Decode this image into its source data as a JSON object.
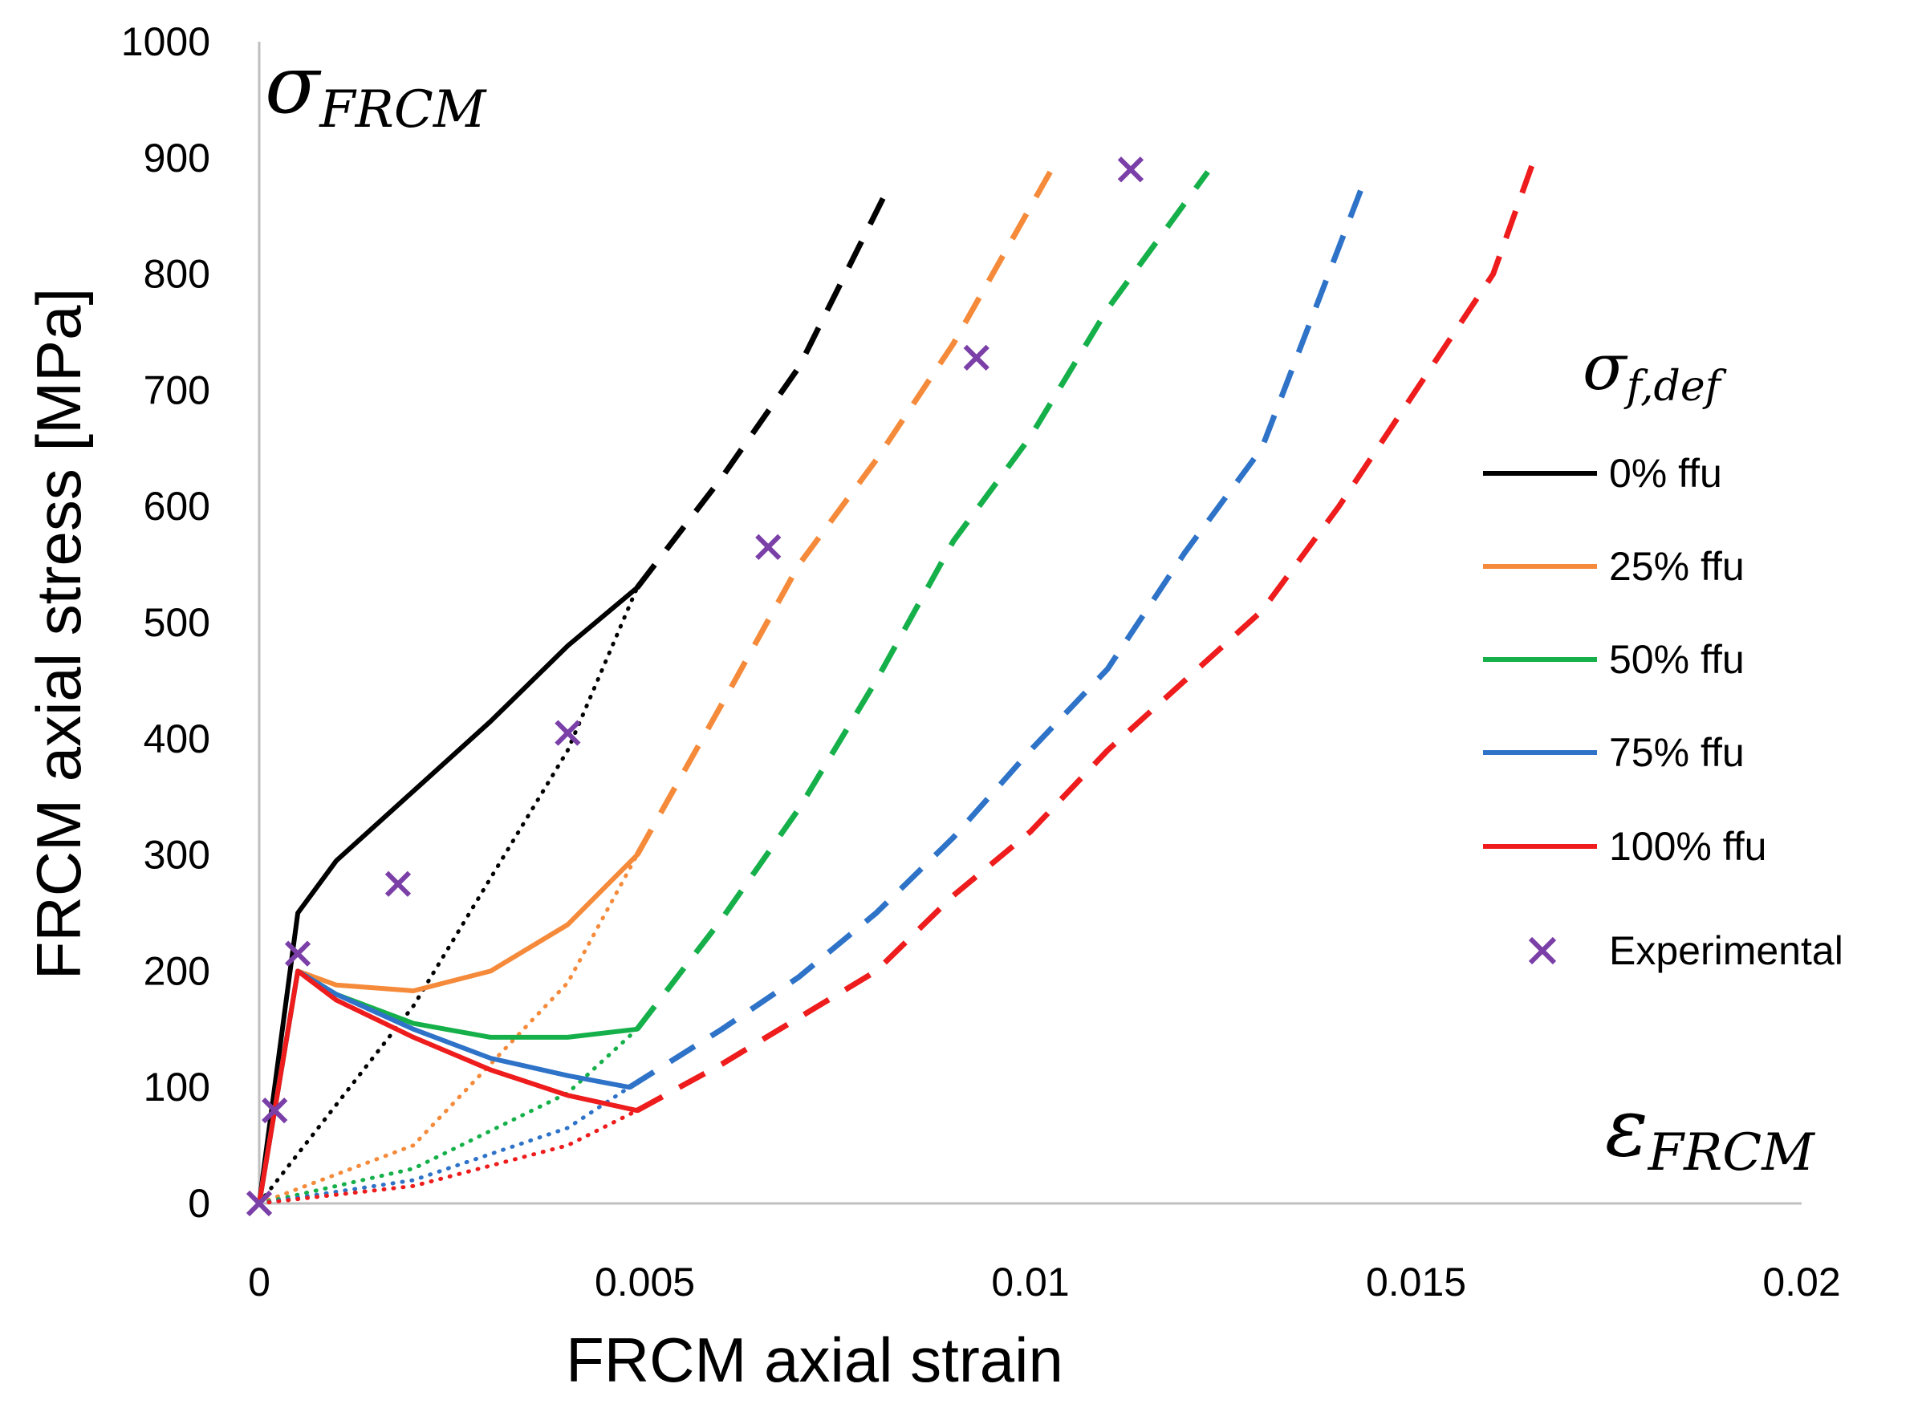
{
  "chart_data": {
    "type": "line",
    "xlabel": "FRCM axial strain",
    "ylabel": "FRCM axial stress [MPa]",
    "xlim": [
      0,
      0.02
    ],
    "ylim": [
      0,
      1000
    ],
    "x_ticks": [
      "0",
      "0.005",
      "0.01",
      "0.015",
      "0.02"
    ],
    "y_ticks": [
      "0",
      "100",
      "200",
      "300",
      "400",
      "500",
      "600",
      "700",
      "800",
      "900",
      "1000"
    ],
    "y_symbol": {
      "main": "σ",
      "sub": "FRCM"
    },
    "x_symbol": {
      "main": "ε",
      "sub": "FRCM"
    },
    "legend_title": {
      "main": "σ",
      "sub": "f,def"
    },
    "legend_position": "right",
    "series": [
      {
        "name": "0% ffu",
        "color": "#000000",
        "solid": [
          [
            0,
            0
          ],
          [
            0.0005,
            250
          ],
          [
            0.001,
            295
          ],
          [
            0.002,
            355
          ],
          [
            0.003,
            415
          ],
          [
            0.004,
            480
          ],
          [
            0.0049,
            530
          ]
        ],
        "dashed": [
          [
            0.0049,
            530
          ],
          [
            0.006,
            625
          ],
          [
            0.007,
            720
          ],
          [
            0.0082,
            880
          ]
        ],
        "dotted": [
          [
            0,
            0
          ],
          [
            0.002,
            170
          ],
          [
            0.004,
            390
          ],
          [
            0.0049,
            530
          ]
        ]
      },
      {
        "name": "25% ffu",
        "color": "#f58a3a",
        "solid": [
          [
            0,
            0
          ],
          [
            0.0005,
            200
          ],
          [
            0.001,
            188
          ],
          [
            0.002,
            183
          ],
          [
            0.003,
            200
          ],
          [
            0.004,
            240
          ],
          [
            0.0049,
            300
          ]
        ],
        "dashed": [
          [
            0.0049,
            300
          ],
          [
            0.006,
            430
          ],
          [
            0.007,
            550
          ],
          [
            0.008,
            640
          ],
          [
            0.009,
            740
          ],
          [
            0.0103,
            893
          ]
        ],
        "dotted": [
          [
            0,
            0
          ],
          [
            0.002,
            50
          ],
          [
            0.004,
            190
          ],
          [
            0.0049,
            300
          ]
        ]
      },
      {
        "name": "50% ffu",
        "color": "#15b04a",
        "solid": [
          [
            0,
            0
          ],
          [
            0.0005,
            200
          ],
          [
            0.001,
            180
          ],
          [
            0.002,
            155
          ],
          [
            0.003,
            143
          ],
          [
            0.004,
            143
          ],
          [
            0.0049,
            150
          ]
        ],
        "dashed": [
          [
            0.0049,
            150
          ],
          [
            0.006,
            245
          ],
          [
            0.007,
            340
          ],
          [
            0.008,
            450
          ],
          [
            0.009,
            570
          ],
          [
            0.01,
            660
          ],
          [
            0.011,
            770
          ],
          [
            0.0123,
            888
          ]
        ],
        "dotted": [
          [
            0,
            0
          ],
          [
            0.002,
            30
          ],
          [
            0.004,
            95
          ],
          [
            0.0049,
            150
          ]
        ]
      },
      {
        "name": "75% ffu",
        "color": "#2e73c8",
        "solid": [
          [
            0,
            0
          ],
          [
            0.0005,
            200
          ],
          [
            0.001,
            180
          ],
          [
            0.002,
            150
          ],
          [
            0.003,
            125
          ],
          [
            0.004,
            110
          ],
          [
            0.0048,
            100
          ]
        ],
        "dashed": [
          [
            0.0048,
            100
          ],
          [
            0.006,
            150
          ],
          [
            0.007,
            195
          ],
          [
            0.008,
            250
          ],
          [
            0.009,
            315
          ],
          [
            0.01,
            390
          ],
          [
            0.011,
            460
          ],
          [
            0.012,
            560
          ],
          [
            0.013,
            650
          ],
          [
            0.0143,
            875
          ]
        ],
        "dotted": [
          [
            0,
            0
          ],
          [
            0.002,
            20
          ],
          [
            0.004,
            65
          ],
          [
            0.0048,
            100
          ]
        ]
      },
      {
        "name": "100% ffu",
        "color": "#ee1c1c",
        "solid": [
          [
            0,
            0
          ],
          [
            0.0005,
            200
          ],
          [
            0.001,
            175
          ],
          [
            0.002,
            143
          ],
          [
            0.003,
            115
          ],
          [
            0.004,
            93
          ],
          [
            0.0049,
            80
          ]
        ],
        "dashed": [
          [
            0.0049,
            80
          ],
          [
            0.006,
            120
          ],
          [
            0.007,
            160
          ],
          [
            0.008,
            200
          ],
          [
            0.009,
            265
          ],
          [
            0.01,
            320
          ],
          [
            0.011,
            390
          ],
          [
            0.012,
            450
          ],
          [
            0.013,
            510
          ],
          [
            0.014,
            600
          ],
          [
            0.015,
            700
          ],
          [
            0.016,
            800
          ],
          [
            0.0165,
            893
          ]
        ],
        "dotted": [
          [
            0,
            0
          ],
          [
            0.002,
            15
          ],
          [
            0.004,
            50
          ],
          [
            0.0049,
            80
          ]
        ]
      }
    ],
    "experimental": {
      "name": "Experimental",
      "color": "#7b3fa8",
      "points": [
        [
          0,
          0
        ],
        [
          0.0002,
          80
        ],
        [
          0.0005,
          215
        ],
        [
          0.0018,
          275
        ],
        [
          0.004,
          405
        ],
        [
          0.0066,
          565
        ],
        [
          0.0093,
          728
        ],
        [
          0.0113,
          890
        ]
      ]
    }
  }
}
